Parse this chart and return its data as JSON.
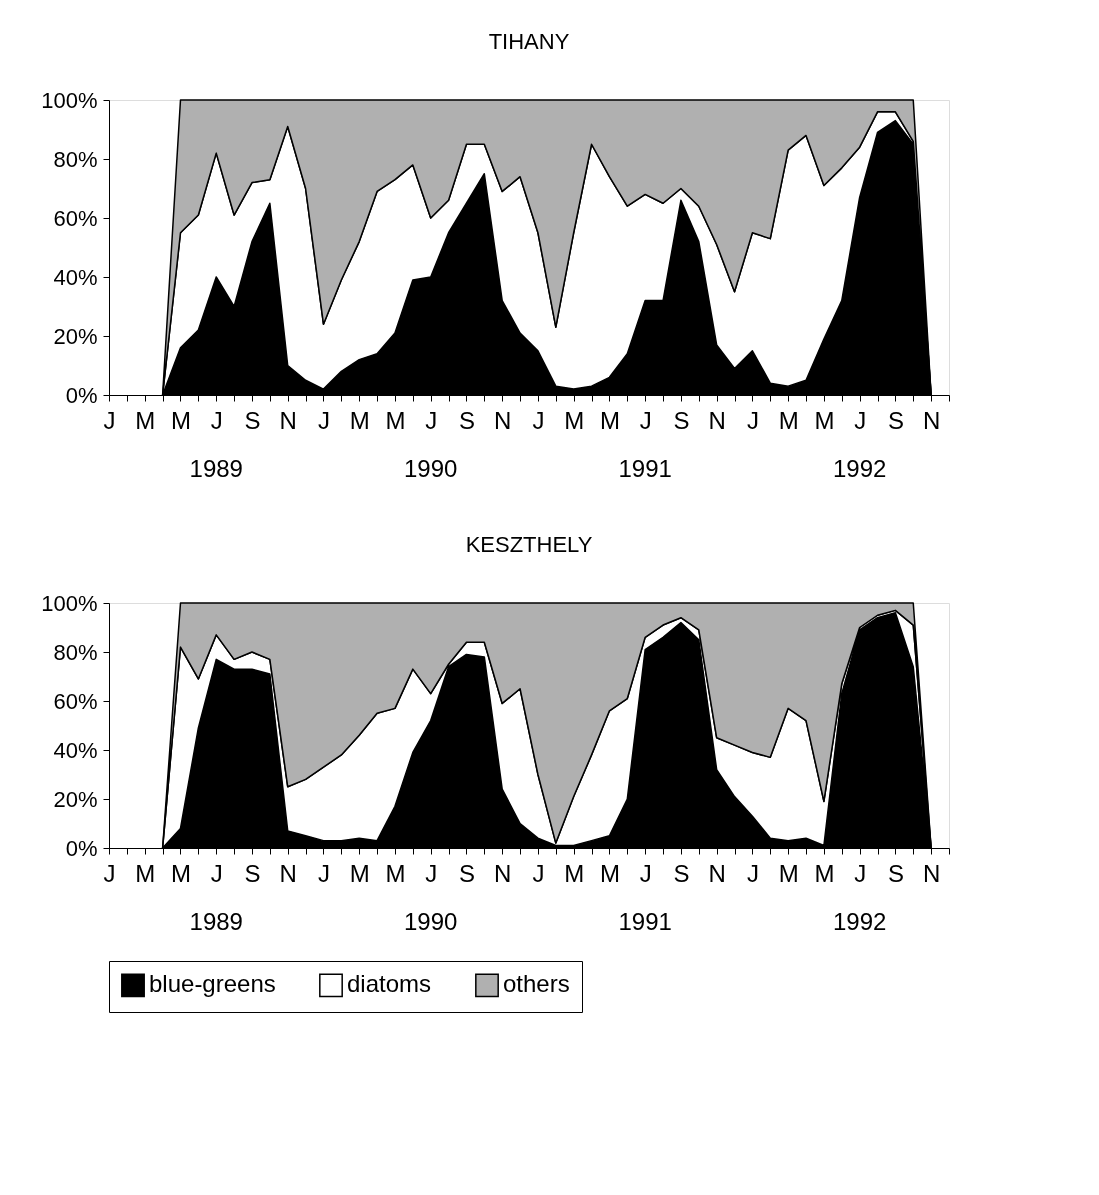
{
  "chart_data": [
    {
      "type": "area",
      "title": "TIHANY",
      "stacked": true,
      "categories": [
        "J",
        null,
        "M",
        null,
        "M",
        null,
        "J",
        null,
        "S",
        null,
        "N",
        null,
        "J",
        null,
        "M",
        null,
        "M",
        null,
        "J",
        null,
        "S",
        null,
        "N",
        null,
        "J",
        null,
        "M",
        null,
        "M",
        null,
        "J",
        null,
        "S",
        null,
        "N",
        null,
        "J",
        null,
        "M",
        null,
        "M",
        null,
        "J",
        null,
        "S",
        null,
        "N",
        null
      ],
      "series": [
        {
          "color": "#000000",
          "values": [
            null,
            null,
            null,
            0,
            16,
            22,
            40,
            30,
            52,
            65,
            10,
            5,
            2,
            8,
            12,
            14,
            21,
            39,
            40,
            55,
            65,
            75,
            32,
            21,
            15,
            3,
            2,
            3,
            6,
            14,
            32,
            32,
            66,
            52,
            17,
            9,
            15,
            4,
            3,
            5,
            19,
            32,
            67,
            89,
            93,
            85,
            0,
            null
          ]
        },
        {
          "color": "#ffffff",
          "values": [
            null,
            null,
            null,
            0,
            39,
            39,
            42,
            31,
            20,
            8,
            81,
            65,
            22,
            31,
            40,
            55,
            52,
            39,
            20,
            11,
            20,
            10,
            37,
            53,
            40,
            20,
            53,
            82,
            68,
            50,
            36,
            33,
            4,
            12,
            34,
            26,
            40,
            49,
            80,
            83,
            52,
            45,
            17,
            7,
            3,
            1,
            0,
            null
          ]
        },
        {
          "color": "#b0b0b0",
          "values": [
            null,
            null,
            null,
            0,
            45,
            39,
            18,
            39,
            28,
            27,
            9,
            30,
            76,
            61,
            48,
            31,
            27,
            22,
            40,
            34,
            15,
            15,
            31,
            26,
            45,
            77,
            45,
            15,
            26,
            36,
            32,
            35,
            30,
            36,
            49,
            65,
            45,
            47,
            17,
            12,
            29,
            23,
            16,
            4,
            4,
            14,
            0,
            null
          ]
        }
      ],
      "ylim": [
        0,
        100
      ],
      "yticks": [
        {
          "value": 0,
          "label": "0%"
        },
        {
          "value": 20,
          "label": "20%"
        },
        {
          "value": 40,
          "label": "40%"
        },
        {
          "value": 60,
          "label": "60%"
        },
        {
          "value": 80,
          "label": "80%"
        },
        {
          "value": 100,
          "label": "100%"
        }
      ],
      "annotations": [
        "1989",
        "1990",
        "1991",
        "1992"
      ]
    },
    {
      "type": "area",
      "title": "KESZTHELY",
      "stacked": true,
      "legend": "bottom",
      "categories": [
        "J",
        null,
        "M",
        null,
        "M",
        null,
        "J",
        null,
        "S",
        null,
        "N",
        null,
        "J",
        null,
        "M",
        null,
        "M",
        null,
        "J",
        null,
        "S",
        null,
        "N",
        null,
        "J",
        null,
        "M",
        null,
        "M",
        null,
        "J",
        null,
        "S",
        null,
        "N",
        null,
        "J",
        null,
        "M",
        null,
        "M",
        null,
        "J",
        null,
        "S",
        null,
        "N",
        null
      ],
      "series": [
        {
          "name": "blue-greens",
          "color": "#000000",
          "values": [
            null,
            null,
            null,
            0,
            8,
            49,
            77,
            73,
            73,
            71,
            7,
            5,
            3,
            3,
            4,
            3,
            17,
            39,
            52,
            74,
            79,
            78,
            24,
            10,
            4,
            1,
            1,
            3,
            5,
            20,
            81,
            86,
            92,
            85,
            32,
            21,
            13,
            4,
            3,
            4,
            1,
            63,
            89,
            94,
            96,
            74,
            0,
            null
          ]
        },
        {
          "name": "diatoms",
          "color": "#ffffff",
          "values": [
            null,
            null,
            null,
            0,
            74,
            20,
            10,
            4,
            7,
            6,
            18,
            23,
            30,
            35,
            42,
            52,
            40,
            34,
            11,
            1,
            5,
            6,
            35,
            55,
            26,
            1,
            20,
            35,
            51,
            41,
            5,
            5,
            2,
            4,
            13,
            21,
            26,
            33,
            54,
            48,
            18,
            4,
            1,
            1,
            1,
            17,
            0,
            null
          ]
        },
        {
          "name": "others",
          "color": "#b0b0b0",
          "values": [
            null,
            null,
            null,
            0,
            18,
            31,
            13,
            23,
            20,
            23,
            75,
            72,
            67,
            62,
            54,
            45,
            43,
            27,
            37,
            25,
            16,
            16,
            41,
            35,
            70,
            98,
            79,
            62,
            44,
            39,
            14,
            9,
            6,
            11,
            55,
            58,
            61,
            63,
            43,
            48,
            81,
            33,
            10,
            5,
            3,
            9,
            0,
            null
          ]
        }
      ],
      "ylim": [
        0,
        100
      ],
      "yticks": [
        {
          "value": 0,
          "label": "0%"
        },
        {
          "value": 20,
          "label": "20%"
        },
        {
          "value": 40,
          "label": "40%"
        },
        {
          "value": 60,
          "label": "60%"
        },
        {
          "value": 80,
          "label": "80%"
        },
        {
          "value": 100,
          "label": "100%"
        }
      ],
      "annotations": [
        "1989",
        "1990",
        "1991",
        "1992"
      ]
    }
  ]
}
